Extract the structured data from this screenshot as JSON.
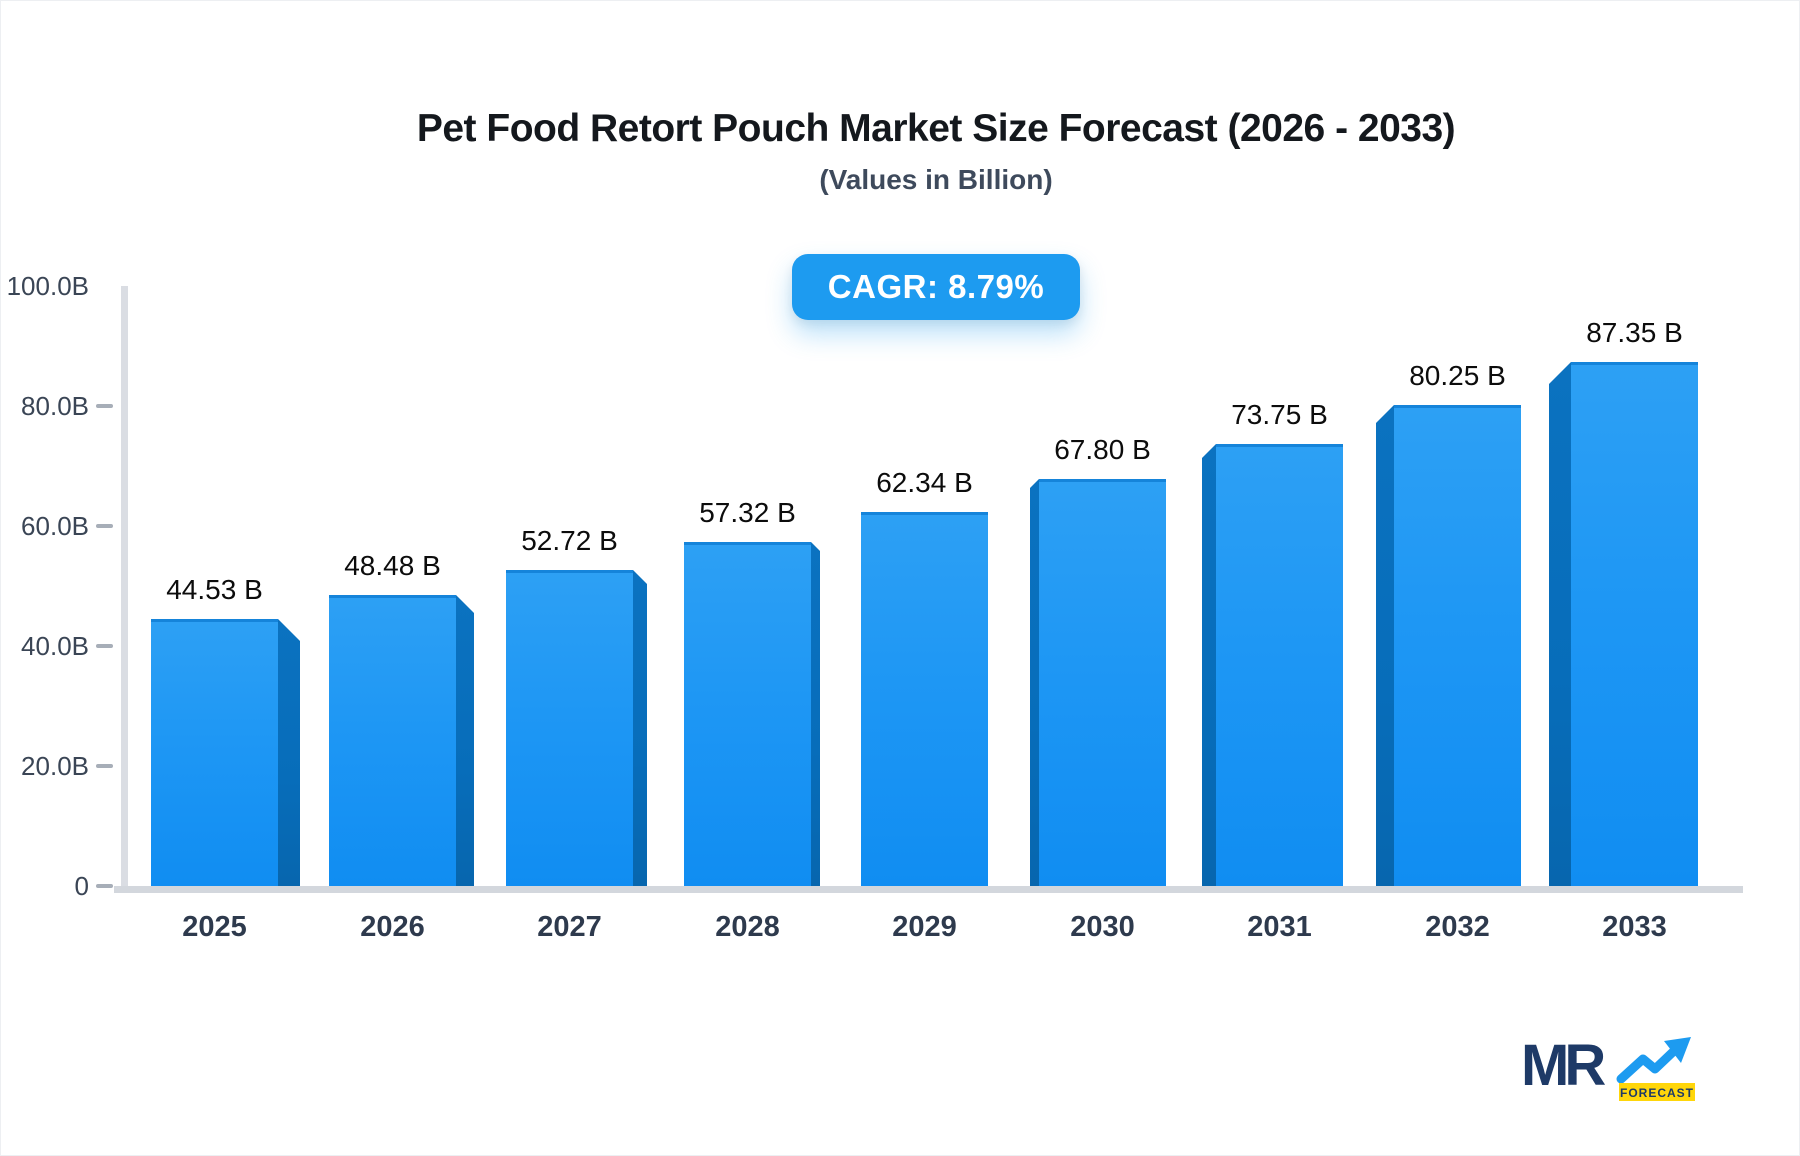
{
  "header": {
    "title": "Pet Food Retort Pouch Market Size Forecast (2026 - 2033)",
    "subtitle": "(Values in Billion)",
    "cagr_label": "CAGR: 8.79%"
  },
  "chart_data": {
    "type": "bar",
    "title": "Pet Food Retort Pouch Market Size Forecast (2026 - 2033)",
    "subtitle": "(Values in Billion)",
    "cagr_percent": 8.79,
    "categories": [
      "2025",
      "2026",
      "2027",
      "2028",
      "2029",
      "2030",
      "2031",
      "2032",
      "2033"
    ],
    "values": [
      44.53,
      48.48,
      52.72,
      57.32,
      62.34,
      67.8,
      73.75,
      80.25,
      87.35
    ],
    "value_labels": [
      "44.53 B",
      "48.48 B",
      "52.72 B",
      "57.32 B",
      "62.34 B",
      "67.80 B",
      "73.75 B",
      "80.25 B",
      "87.35 B"
    ],
    "xlabel": "",
    "ylabel": "",
    "ylim": [
      0,
      100
    ],
    "grid": false,
    "legend": null,
    "y_axis_ticks": [
      {
        "label": "100.0B",
        "value": 100,
        "dash": false
      },
      {
        "label": "80.0B",
        "value": 80,
        "dash": true
      },
      {
        "label": "60.0B",
        "value": 60,
        "dash": true
      },
      {
        "label": "40.0B",
        "value": 40,
        "dash": true
      },
      {
        "label": "20.0B",
        "value": 20,
        "dash": true
      },
      {
        "label": "0",
        "value": 0,
        "dash": true
      }
    ]
  },
  "colors": {
    "bar_fill_top": "#2da0f4",
    "bar_fill_bottom": "#108df2",
    "bar_side_dark": "#076dba",
    "badge_blue": "#1d9bf0",
    "axis_gray": "#d3d7dd",
    "title_text": "#14181d",
    "subtitle_text": "#3e4a5c",
    "logo_navy": "#1e3a67",
    "logo_yellow": "#ffd60a",
    "logo_arrow_blue": "#1d9bf0"
  },
  "logo": {
    "text": "MR",
    "sub": "FORECAST"
  }
}
